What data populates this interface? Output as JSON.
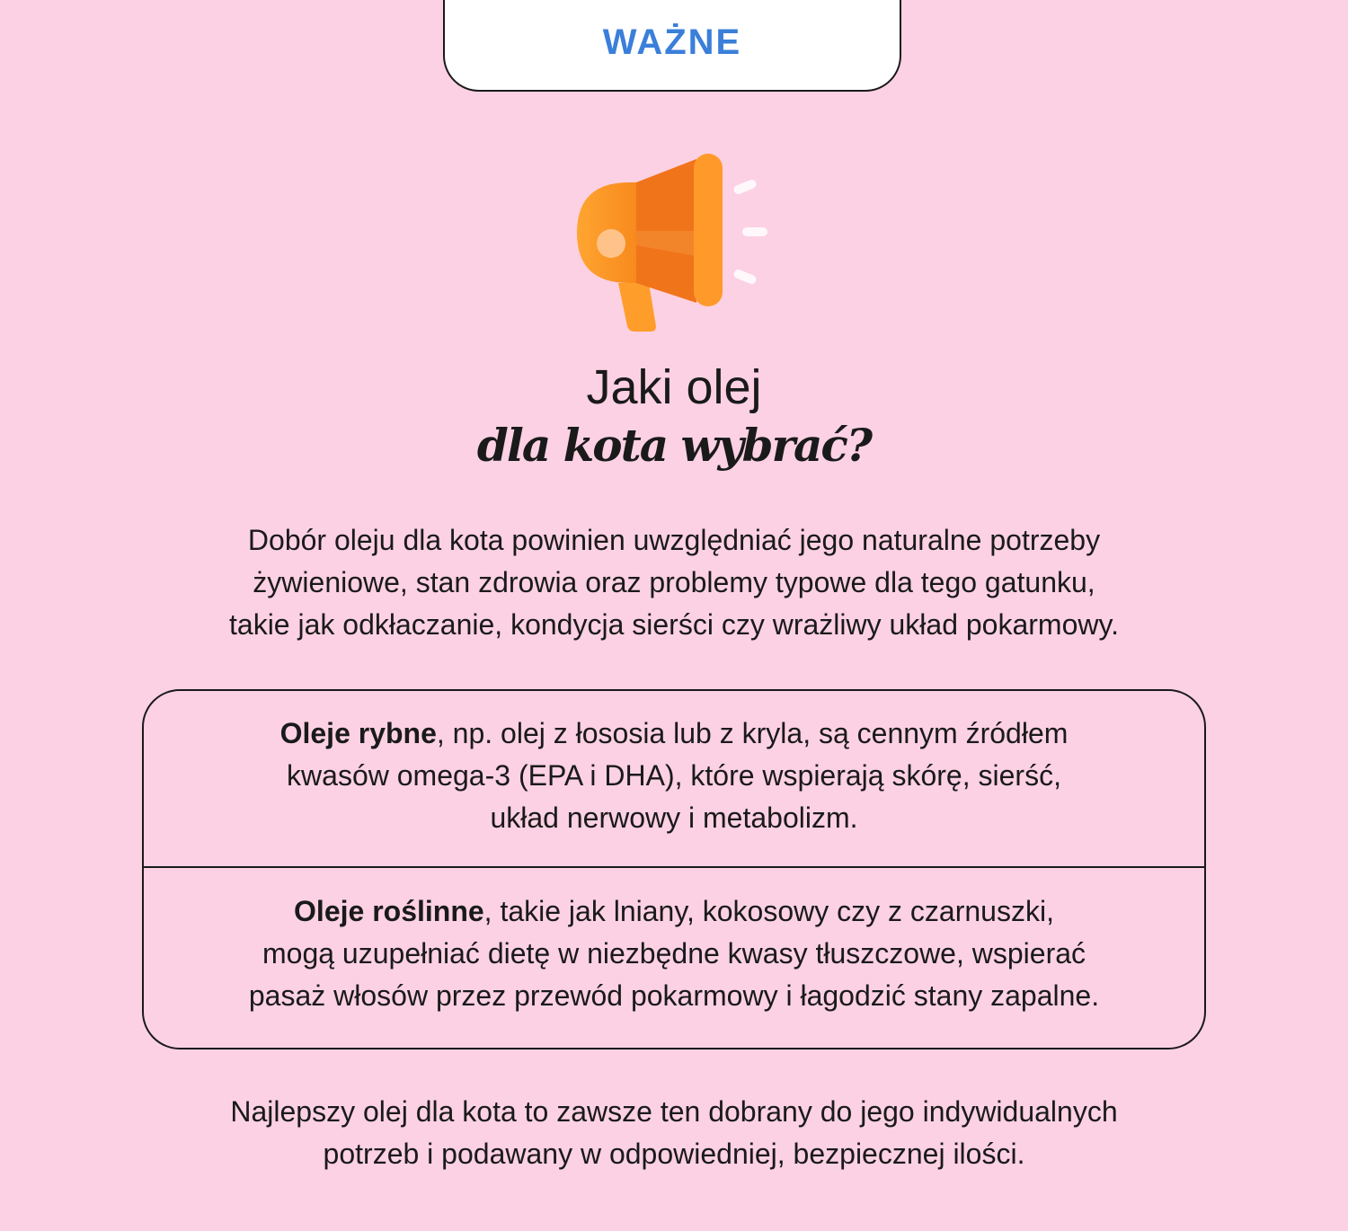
{
  "header": {
    "label": "WAŻNE"
  },
  "icon": "megaphone-icon",
  "colors": {
    "background": "#fcd1e3",
    "accent": "#3a7fd9",
    "icon": "#f7931e"
  },
  "title": {
    "line1": "Jaki olej",
    "line2": "dla kota wybrać?"
  },
  "intro": {
    "lines": [
      "Dobór oleju dla kota powinien uwzględniać jego naturalne potrzeby",
      "żywieniowe, stan zdrowia oraz problemy typowe dla tego gatunku,",
      "takie jak odkłaczanie, kondycja sierści czy wrażliwy układ pokarmowy."
    ]
  },
  "options": [
    {
      "bold": "Oleje rybne",
      "line1_rest": ", np. olej z łososia lub z kryla, są cennym źródłem",
      "line2": "kwasów omega-3 (EPA i DHA), które wspierają skórę, sierść,",
      "line3": "układ nerwowy i metabolizm."
    },
    {
      "bold": "Oleje roślinne",
      "line1_rest": ", takie jak lniany, kokosowy czy z czarnuszki,",
      "line2": "mogą uzupełniać dietę w niezbędne kwasy tłuszczowe, wspierać",
      "line3": "pasaż włosów przez przewód pokarmowy i łagodzić stany zapalne."
    }
  ],
  "summary": {
    "lines": [
      "Najlepszy olej dla kota to zawsze ten dobrany do jego indywidualnych",
      "potrzeb i podawany w odpowiedniej, bezpiecznej ilości."
    ]
  }
}
